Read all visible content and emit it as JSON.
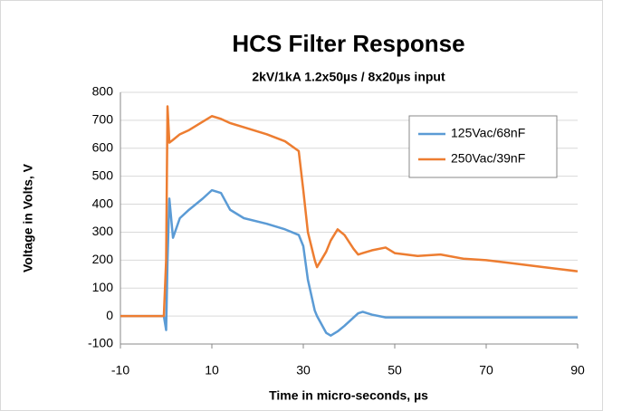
{
  "chart_data": {
    "type": "line",
    "title": "HCS Filter Response",
    "subtitle": "2kV/1kA 1.2x50µs / 8x20µs input",
    "x_label": "Time in micro-seconds, µs",
    "y_label": "Voltage in Volts, V",
    "x": [
      -10,
      -5,
      -0.5,
      0,
      0.3,
      0.7,
      1.5,
      3,
      5,
      8,
      10,
      12,
      14,
      17,
      22,
      26,
      29,
      30,
      31,
      32.5,
      33,
      35,
      36,
      37.5,
      39,
      41,
      42,
      43,
      45,
      48,
      50,
      55,
      60,
      65,
      70,
      75,
      80,
      85,
      90
    ],
    "series": [
      {
        "name": "125Vac/68nF",
        "color": "#5b9bd5",
        "values": [
          0,
          0,
          0,
          -50,
          200,
          420,
          280,
          350,
          380,
          420,
          450,
          440,
          380,
          350,
          330,
          310,
          290,
          250,
          130,
          20,
          0,
          -60,
          -70,
          -55,
          -35,
          -5,
          10,
          15,
          5,
          -5,
          -5,
          -5,
          -5,
          -5,
          -5,
          -5,
          -5,
          -5,
          -5
        ]
      },
      {
        "name": "250Vac/39nF",
        "color": "#ed7d31",
        "values": [
          0,
          0,
          0,
          200,
          750,
          620,
          630,
          650,
          665,
          695,
          715,
          705,
          690,
          675,
          650,
          625,
          590,
          450,
          300,
          200,
          175,
          230,
          270,
          310,
          290,
          240,
          220,
          225,
          235,
          245,
          225,
          215,
          220,
          205,
          200,
          190,
          180,
          170,
          160
        ]
      }
    ],
    "xlim": [
      -10,
      90
    ],
    "xticks": [
      -10,
      10,
      30,
      50,
      70,
      90
    ],
    "ylim": [
      -100,
      800
    ],
    "yticks": [
      -100,
      0,
      100,
      200,
      300,
      400,
      500,
      600,
      700,
      800
    ],
    "grid": true,
    "legend": "upper right"
  }
}
